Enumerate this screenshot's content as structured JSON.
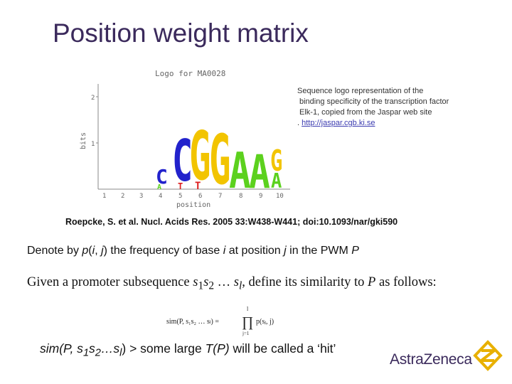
{
  "slide": {
    "title": "Position weight matrix"
  },
  "logo": {
    "header": "Logo for MA0028",
    "y_axis_label": "bits",
    "y_ticks": [
      "2",
      "1"
    ],
    "x_axis_label": "position",
    "positions": [
      "1",
      "2",
      "3",
      "4",
      "5",
      "6",
      "7",
      "8",
      "9",
      "10"
    ],
    "colors": {
      "A": "#5cd11e",
      "C": "#2222cc",
      "G": "#f2c400",
      "T": "#dd2020"
    }
  },
  "caption": {
    "line1": "Sequence logo representation of the",
    "line2": "binding specificity of the transcription factor",
    "line3": "Elk-1, copied from the Jaspar web site",
    "line4_prefix": ". ",
    "url": "http://jaspar.cgb.ki.se"
  },
  "citation": "Roepcke, S. et al. Nucl. Acids Res. 2005 33:W438-W441; doi:10.1093/nar/gki590",
  "denote": {
    "t1": "Denote by ",
    "p": "p",
    "t2": "(",
    "i": "i",
    "t3": ", ",
    "j": "j",
    "t4": ") the frequency of base ",
    "i2": "i",
    "t5": " at position ",
    "j2": "j",
    "t6": " in the PWM ",
    "P": "P"
  },
  "given": {
    "t1": "Given a promoter subsequence ",
    "s": "s",
    "sub1": "1",
    "s2": "s",
    "sub2": "2",
    "dots": " … ",
    "s3": "s",
    "subl": "l",
    "t2": ", define its similarity to ",
    "P": "P",
    "t3": " as follows:"
  },
  "formula": {
    "lhs": "sim(P, s₁s₂ … sₗ) =",
    "product": "∏",
    "upper": "l",
    "lower": "j=1",
    "rhs": "p(sⱼ, j)"
  },
  "hit": {
    "t1": "sim(P, s",
    "sub1": "1",
    "t2": "s",
    "sub2": "2",
    "t3": "…s",
    "subl": "l",
    "t4": ") > some large ",
    "T": "T(P)",
    "t5": " will be called a ‘hit’"
  },
  "brand": {
    "name": "AstraZeneca",
    "icon": "astrazeneca-logo-icon",
    "accent": "#e8b000",
    "text_color": "#3b2a5c"
  }
}
